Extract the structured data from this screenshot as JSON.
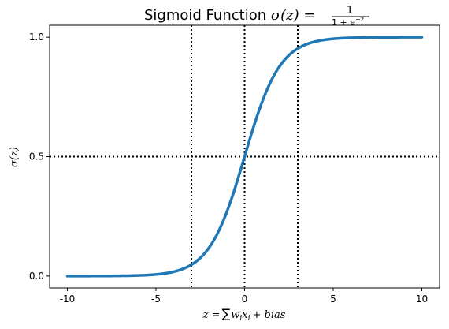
{
  "chart_data": {
    "type": "line",
    "title": "Sigmoid Function σ(z) = 1 / (1 + e^−z)",
    "title_parts": {
      "text": "Sigmoid Function ",
      "math_lhs": "σ(z) =",
      "numerator": "1",
      "denominator_prefix": "1 + e",
      "denominator_exp": "−z"
    },
    "xlabel": "z = ∑ w_i x_i + bias",
    "xlabel_parts": {
      "lhs": "z =",
      "sum": "∑",
      "w": "w",
      "w_sub": "i",
      "x": "x",
      "x_sub": "i",
      "rest": "+ bias"
    },
    "ylabel": "σ(z)",
    "xlim": [
      -11,
      11
    ],
    "ylim": [
      -0.05,
      1.05
    ],
    "x_ticks": [
      -10,
      -5,
      0,
      5,
      10
    ],
    "x_tick_labels": [
      "-10",
      "-5",
      "0",
      "5",
      "10"
    ],
    "y_ticks": [
      0.0,
      0.5,
      1.0
    ],
    "y_tick_labels": [
      "0.0",
      "0.5",
      "1.0"
    ],
    "grid": false,
    "legend": "none",
    "series": [
      {
        "function": "1/(1+exp(-z))",
        "x_range": [
          -10,
          10
        ],
        "color": "#1f77b4",
        "points": [
          [
            -10,
            4.54e-05
          ],
          [
            -8,
            0.000335
          ],
          [
            -6,
            0.00247
          ],
          [
            -5,
            0.00669
          ],
          [
            -4,
            0.018
          ],
          [
            -3,
            0.0474
          ],
          [
            -2,
            0.119
          ],
          [
            -1,
            0.269
          ],
          [
            0,
            0.5
          ],
          [
            1,
            0.731
          ],
          [
            2,
            0.881
          ],
          [
            3,
            0.953
          ],
          [
            4,
            0.982
          ],
          [
            5,
            0.993
          ],
          [
            6,
            0.998
          ],
          [
            8,
            0.9997
          ],
          [
            10,
            0.99995
          ]
        ]
      }
    ],
    "reference_lines": {
      "vertical_x": [
        -3,
        0,
        3
      ],
      "horizontal_y": [
        0.5
      ],
      "style": "dotted",
      "color": "#000000"
    }
  }
}
